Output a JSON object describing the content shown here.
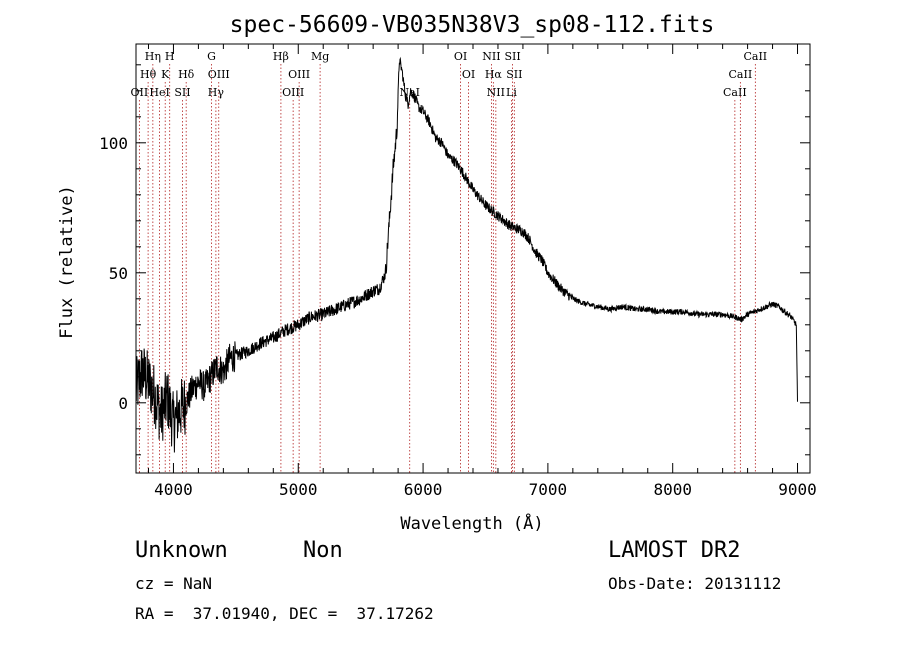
{
  "chart_data": {
    "type": "line",
    "title": "spec-56609-VB035N38V3_sp08-112.fits",
    "xlabel": "Wavelength (Å)",
    "ylabel": "Flux (relative)",
    "xlim": [
      3700,
      9100
    ],
    "ylim": [
      -27,
      138
    ],
    "x_ticks": [
      4000,
      5000,
      6000,
      7000,
      8000,
      9000
    ],
    "y_ticks": [
      0,
      50,
      100
    ],
    "grid": false,
    "series": [
      {
        "values_description_free": true,
        "x": [
          3700,
          3750,
          3800,
          3850,
          3900,
          3950,
          4000,
          4050,
          4100,
          4150,
          4200,
          4250,
          4300,
          4350,
          4400,
          4450,
          4500,
          4600,
          4700,
          4800,
          4900,
          5000,
          5100,
          5200,
          5300,
          5400,
          5500,
          5600,
          5650,
          5700,
          5730,
          5760,
          5790,
          5810,
          5830,
          5860,
          5880,
          5900,
          5930,
          5960,
          6000,
          6050,
          6100,
          6150,
          6200,
          6250,
          6300,
          6350,
          6400,
          6450,
          6500,
          6550,
          6600,
          6650,
          6700,
          6750,
          6800,
          6850,
          6900,
          6950,
          7000,
          7100,
          7200,
          7300,
          7400,
          7500,
          7600,
          7700,
          7800,
          7900,
          8000,
          8100,
          8200,
          8300,
          8400,
          8500,
          8550,
          8600,
          8650,
          8700,
          8750,
          8800,
          8850,
          8900,
          8950,
          8990,
          9000
        ],
        "y": [
          5,
          12,
          8,
          3,
          -5,
          2,
          -8,
          -3,
          0,
          5,
          8,
          6,
          10,
          14,
          12,
          17,
          18,
          20,
          23,
          25,
          28,
          30,
          33,
          34,
          36,
          38,
          40,
          43,
          44,
          50,
          70,
          90,
          105,
          132,
          128,
          118,
          115,
          120,
          118,
          114,
          112,
          108,
          102,
          100,
          95,
          93,
          90,
          86,
          82,
          79,
          76,
          74,
          72,
          70,
          68,
          67,
          66,
          63,
          58,
          55,
          50,
          44,
          40,
          38,
          37,
          36,
          37,
          36,
          36,
          35,
          35,
          35,
          34,
          34,
          34,
          33,
          32,
          34,
          35,
          36,
          37,
          38,
          37,
          35,
          33,
          30,
          0
        ]
      }
    ],
    "spectral_lines": [
      {
        "label": "Hη",
        "wl": 3835,
        "row": 0
      },
      {
        "label": "H",
        "wl": 3970,
        "row": 0
      },
      {
        "label": "G",
        "wl": 4305,
        "row": 0
      },
      {
        "label": "Hβ",
        "wl": 4861,
        "row": 0
      },
      {
        "label": "Mg",
        "wl": 5175,
        "row": 0
      },
      {
        "label": "OI",
        "wl": 6300,
        "row": 0
      },
      {
        "label": "NII",
        "wl": 6548,
        "row": 0
      },
      {
        "label": "SII",
        "wl": 6717,
        "row": 0
      },
      {
        "label": "CaII",
        "wl": 8662,
        "row": 0
      },
      {
        "label": "Hθ",
        "wl": 3797,
        "row": 1
      },
      {
        "label": "K",
        "wl": 3934,
        "row": 1
      },
      {
        "label": "Hδ",
        "wl": 4102,
        "row": 1
      },
      {
        "label": "OIII",
        "wl": 4363,
        "row": 1
      },
      {
        "label": "OIII",
        "wl": 5007,
        "row": 1
      },
      {
        "label": "OI",
        "wl": 6364,
        "row": 1
      },
      {
        "label": "Hα",
        "wl": 6563,
        "row": 1
      },
      {
        "label": "SII",
        "wl": 6731,
        "row": 1
      },
      {
        "label": "CaII",
        "wl": 8542,
        "row": 1
      },
      {
        "label": "OII",
        "wl": 3727,
        "row": 2
      },
      {
        "label": "HeI",
        "wl": 3889,
        "row": 2
      },
      {
        "label": "SII",
        "wl": 4072,
        "row": 2
      },
      {
        "label": "Hγ",
        "wl": 4340,
        "row": 2
      },
      {
        "label": "OIII",
        "wl": 4959,
        "row": 2
      },
      {
        "label": "NaI",
        "wl": 5893,
        "row": 2
      },
      {
        "label": "NII",
        "wl": 6583,
        "row": 2
      },
      {
        "label": "Li",
        "wl": 6708,
        "row": 2
      },
      {
        "label": "CaII",
        "wl": 8498,
        "row": 2
      }
    ]
  },
  "info": {
    "class": "Unknown",
    "subclass": "Non",
    "survey": "LAMOST DR2",
    "cz": "cz = NaN",
    "obs_date": "Obs-Date: 20131112",
    "coords": "RA =  37.01940, DEC =  37.17262"
  }
}
